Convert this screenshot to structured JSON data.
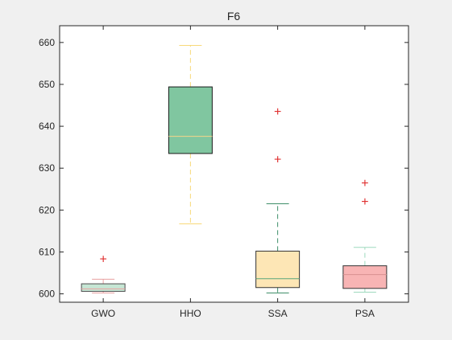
{
  "chart_data": {
    "type": "box",
    "title": "F6",
    "xlabel": "",
    "ylabel": "",
    "categories": [
      "GWO",
      "HHO",
      "SSA",
      "PSA"
    ],
    "ylim": [
      598,
      664
    ],
    "yticks": [
      600,
      610,
      620,
      630,
      640,
      650,
      660
    ],
    "grid": false,
    "boxes": [
      {
        "name": "GWO",
        "whisker_low": 600.2,
        "q1": 600.6,
        "median": 601.2,
        "q3": 602.4,
        "whisker_high": 603.5,
        "outliers": [
          608.3
        ],
        "fill": "#c6e6d4",
        "edge": "#4d4d4d",
        "median_color": "#e8a0a0",
        "whisker_color": "#e8a0a0"
      },
      {
        "name": "HHO",
        "whisker_low": 616.7,
        "q1": 633.5,
        "median": 637.6,
        "q3": 649.4,
        "whisker_high": 659.3,
        "outliers": [],
        "fill": "#80c6a0",
        "edge": "#1a1a1a",
        "median_color": "#f5d58a",
        "whisker_color": "#f8d97a"
      },
      {
        "name": "SSA",
        "whisker_low": 600.2,
        "q1": 601.5,
        "median": 603.6,
        "q3": 610.2,
        "whisker_high": 621.5,
        "outliers": [
          632.1,
          643.5
        ],
        "fill": "#fde6b5",
        "edge": "#333333",
        "median_color": "#5aa57c",
        "whisker_color": "#3f8f69"
      },
      {
        "name": "PSA",
        "whisker_low": 600.4,
        "q1": 601.3,
        "median": 604.6,
        "q3": 606.7,
        "whisker_high": 611.1,
        "outliers": [
          622.0,
          626.4
        ],
        "fill": "#f8b4b4",
        "edge": "#333333",
        "median_color": "#d99090",
        "whisker_color": "#9ed9bd"
      }
    ],
    "outlier_marker": "+",
    "outlier_color": "#e03030"
  }
}
